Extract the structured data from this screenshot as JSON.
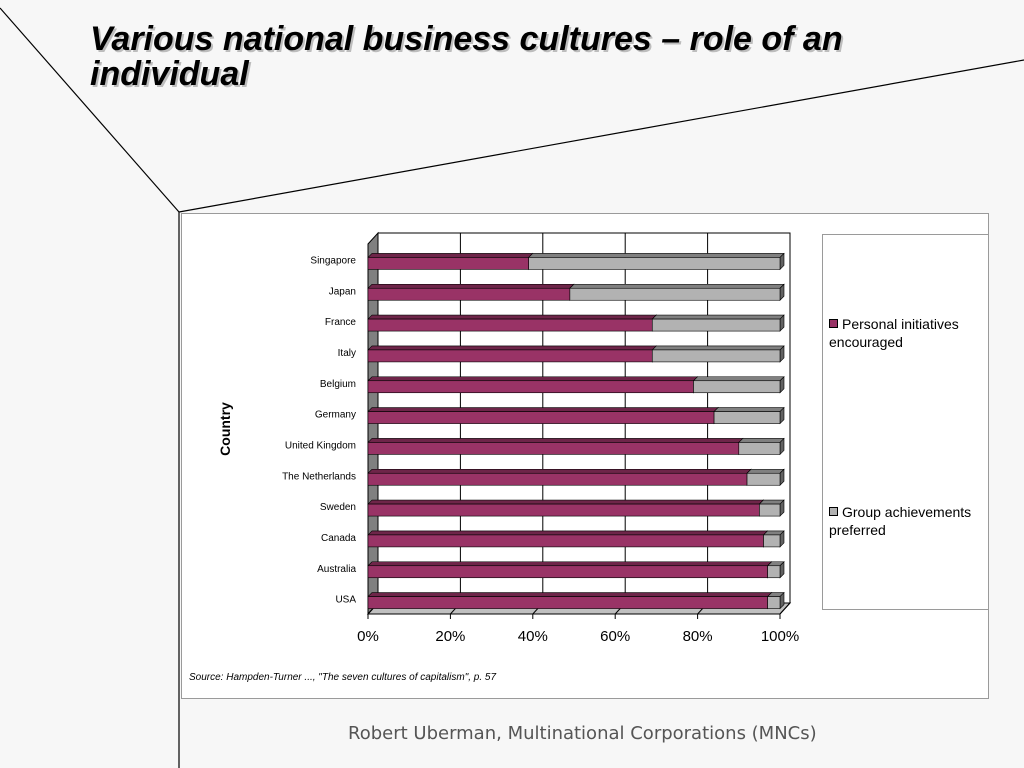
{
  "slide": {
    "title": "Various national business cultures – role of an individual",
    "source": "Source: Hampden-Turner ..., \"The seven cultures of capitalism\", p. 57",
    "footer": "Robert Uberman, Multinational Corporations (MNCs)"
  },
  "chart_data": {
    "type": "bar",
    "orientation": "horizontal",
    "stacked": "100%",
    "three_d": true,
    "title": "",
    "xlabel": "",
    "ylabel": "Country",
    "xlim": [
      0,
      100
    ],
    "x_ticks": [
      "0%",
      "20%",
      "40%",
      "60%",
      "80%",
      "100%"
    ],
    "grid": "vertical",
    "legend_position": "right",
    "categories": [
      "Singapore",
      "Japan",
      "France",
      "Italy",
      "Belgium",
      "Germany",
      "United Kingdom",
      "The Netherlands",
      "Sweden",
      "Canada",
      "Australia",
      "USA"
    ],
    "series": [
      {
        "name": "Personal initiatives encouraged",
        "color": "#993366",
        "values": [
          39,
          49,
          69,
          69,
          79,
          84,
          90,
          92,
          95,
          96,
          97,
          97
        ]
      },
      {
        "name": "Group achievements preferred",
        "color": "#b2b2b2",
        "values": [
          61,
          51,
          31,
          31,
          21,
          16,
          10,
          8,
          5,
          4,
          3,
          3
        ]
      }
    ]
  }
}
